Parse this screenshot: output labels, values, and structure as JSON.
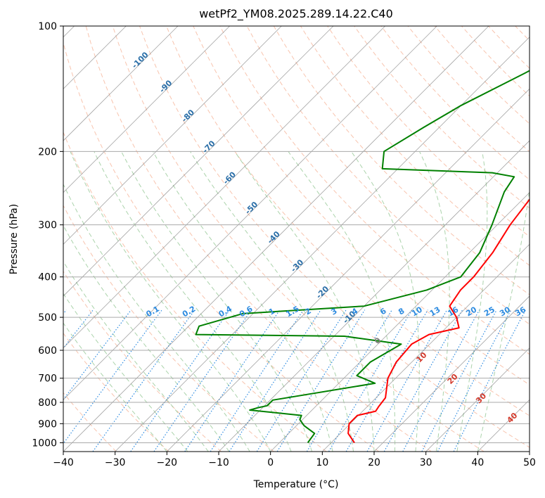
{
  "chart_data": {
    "type": "skew-t",
    "title": "wetPf2_YM08.2025.289.14.22.C40",
    "xlabel": "Temperature (°C)",
    "ylabel": "Pressure (hPa)",
    "xlim": [
      -40,
      50
    ],
    "ylim": [
      1050,
      100
    ],
    "x_ticks": [
      -40,
      -30,
      -20,
      -10,
      0,
      10,
      20,
      30,
      40,
      50
    ],
    "y_ticks": [
      100,
      200,
      300,
      400,
      500,
      600,
      700,
      800,
      900,
      1000
    ],
    "x_tick_labels": [
      "−40",
      "−30",
      "−20",
      "−10",
      "0",
      "10",
      "20",
      "30",
      "40",
      "50"
    ],
    "y_tick_labels": [
      "100",
      "200",
      "300",
      "400",
      "500",
      "600",
      "700",
      "800",
      "900",
      "1000"
    ],
    "colors": {
      "temperature": "#ff0000",
      "dewpoint": "#008000",
      "isotherm": "#7f7f7f",
      "isobar": "#aaaaaa",
      "dry_adiabat": "#f4a582",
      "moist_adiabat": "#8fc48f",
      "mixing_ratio": "#2d8be0",
      "isotherm_label": "#2b6fa8",
      "dry_adiabat_label": "#d33a2c"
    },
    "isotherm_labels": [
      {
        "label": "-100",
        "T": -100,
        "p": 122
      },
      {
        "label": "-90",
        "T": -90,
        "p": 141
      },
      {
        "label": "-80",
        "T": -80,
        "p": 166
      },
      {
        "label": "-70",
        "T": -70,
        "p": 197
      },
      {
        "label": "-60",
        "T": -60,
        "p": 234
      },
      {
        "label": "-50",
        "T": -50,
        "p": 276
      },
      {
        "label": "-40",
        "T": -40,
        "p": 325
      },
      {
        "label": "-30",
        "T": -30,
        "p": 380
      },
      {
        "label": "-20",
        "T": -20,
        "p": 440
      },
      {
        "label": "-10",
        "T": -10,
        "p": 505
      },
      {
        "label": "0",
        "T": 0,
        "p": 575
      }
    ],
    "mixing_ratio_labels": [
      {
        "label": "0.1",
        "T": -22.5
      },
      {
        "label": "0.2",
        "T": -15.5
      },
      {
        "label": "0.4",
        "T": -8.5
      },
      {
        "label": "0.6",
        "T": -4.5
      },
      {
        "label": "1",
        "T": 0.5
      },
      {
        "label": "1.5",
        "T": 4.5
      },
      {
        "label": "2",
        "T": 7.5
      },
      {
        "label": "3",
        "T": 12.5
      },
      {
        "label": "4",
        "T": 16.5
      },
      {
        "label": "6",
        "T": 22
      },
      {
        "label": "8",
        "T": 25.5
      },
      {
        "label": "10",
        "T": 28.5
      },
      {
        "label": "13",
        "T": 32
      },
      {
        "label": "16",
        "T": 35.5
      },
      {
        "label": "20",
        "T": 39
      },
      {
        "label": "25",
        "T": 42.5
      },
      {
        "label": "30",
        "T": 45.5
      },
      {
        "label": "36",
        "T": 48.5
      }
    ],
    "dry_adiabat_labels": [
      {
        "label": "10",
        "T": 29.5,
        "p": 630
      },
      {
        "label": "20",
        "T": 35.5,
        "p": 710
      },
      {
        "label": "30",
        "T": 41,
        "p": 790
      },
      {
        "label": "40",
        "T": 47,
        "p": 880
      }
    ],
    "temperature_profile": [
      {
        "p": 1000,
        "T": 14.5
      },
      {
        "p": 950,
        "T": 11.5
      },
      {
        "p": 900,
        "T": 9.8
      },
      {
        "p": 860,
        "T": 9.8
      },
      {
        "p": 840,
        "T": 12.5
      },
      {
        "p": 820,
        "T": 12.2
      },
      {
        "p": 780,
        "T": 11.8
      },
      {
        "p": 700,
        "T": 8.5
      },
      {
        "p": 640,
        "T": 7
      },
      {
        "p": 580,
        "T": 6.5
      },
      {
        "p": 550,
        "T": 8
      },
      {
        "p": 530,
        "T": 12.5
      },
      {
        "p": 500,
        "T": 10
      },
      {
        "p": 470,
        "T": 6.5
      },
      {
        "p": 430,
        "T": 5.5
      },
      {
        "p": 400,
        "T": 5.5
      },
      {
        "p": 350,
        "T": 4.5
      },
      {
        "p": 300,
        "T": 2.5
      },
      {
        "p": 250,
        "T": 1
      },
      {
        "p": 225,
        "T": 4
      },
      {
        "p": 200,
        "T": 9
      },
      {
        "p": 170,
        "T": 13
      },
      {
        "p": 150,
        "T": 17.5
      },
      {
        "p": 130,
        "T": 19
      },
      {
        "p": 115,
        "T": 22
      },
      {
        "p": 100,
        "T": 26.5
      }
    ],
    "dewpoint_profile": [
      {
        "p": 1000,
        "T": 5.5
      },
      {
        "p": 950,
        "T": 5
      },
      {
        "p": 910,
        "T": 1.5
      },
      {
        "p": 880,
        "T": -0.5
      },
      {
        "p": 860,
        "T": -1
      },
      {
        "p": 835,
        "T": -12
      },
      {
        "p": 825,
        "T": -11
      },
      {
        "p": 815,
        "T": -9.5
      },
      {
        "p": 790,
        "T": -9.5
      },
      {
        "p": 720,
        "T": 7
      },
      {
        "p": 690,
        "T": 2
      },
      {
        "p": 640,
        "T": 2
      },
      {
        "p": 580,
        "T": 4.5
      },
      {
        "p": 555,
        "T": -8
      },
      {
        "p": 550,
        "T": -37
      },
      {
        "p": 525,
        "T": -38
      },
      {
        "p": 490,
        "T": -32
      },
      {
        "p": 470,
        "T": -10
      },
      {
        "p": 430,
        "T": -1
      },
      {
        "p": 400,
        "T": 3
      },
      {
        "p": 350,
        "T": 2
      },
      {
        "p": 300,
        "T": -1
      },
      {
        "p": 250,
        "T": -5
      },
      {
        "p": 230,
        "T": -6
      },
      {
        "p": 225,
        "T": -11
      },
      {
        "p": 220,
        "T": -33
      },
      {
        "p": 200,
        "T": -36
      },
      {
        "p": 175,
        "T": -33
      },
      {
        "p": 155,
        "T": -30
      },
      {
        "p": 130,
        "T": -24
      },
      {
        "p": 118,
        "T": -21
      },
      {
        "p": 112,
        "T": -12
      },
      {
        "p": 105,
        "T": -6
      },
      {
        "p": 100,
        "T": -6
      }
    ]
  }
}
